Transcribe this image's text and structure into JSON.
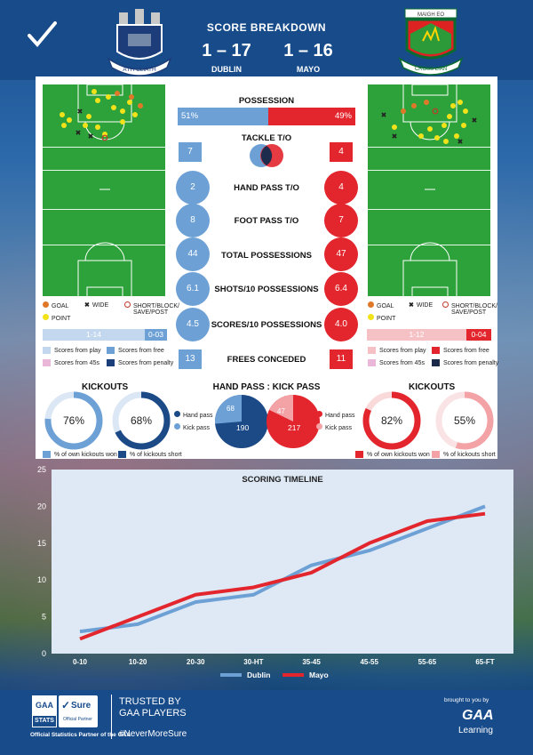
{
  "header": {
    "title": "SCORE BREAKDOWN"
  },
  "teams": {
    "left": {
      "name": "DUBLIN",
      "score": "1 – 17",
      "crest_text": "ÁTH CLIATH",
      "color": "#6da1d6",
      "dark": "#1b4a86"
    },
    "right": {
      "name": "MAYO",
      "score": "1 – 16",
      "crest_text": "CROSS LIAN",
      "crest_top": "MAIGH EO",
      "color": "#e3262d",
      "light": "#f3a2a6"
    }
  },
  "legend_shots": {
    "goal": "GOAL",
    "wide": "WIDE",
    "short": "SHORT/BLOCK/",
    "short2": "SAVE/POST",
    "point": "POINT"
  },
  "possession": {
    "label": "POSSESSION",
    "left": "51%",
    "right": "49%",
    "left_value": 51
  },
  "stats": [
    {
      "label": "TACKLE T/O",
      "left": "7",
      "right": "4"
    },
    {
      "label": "HAND PASS T/O",
      "left": "2",
      "right": "4"
    },
    {
      "label": "FOOT PASS T/O",
      "left": "8",
      "right": "7"
    },
    {
      "label": "TOTAL POSSESSIONS",
      "left": "44",
      "right": "47"
    },
    {
      "label": "SHOTS/10 POSSESSIONS",
      "left": "6.1",
      "right": "6.4"
    },
    {
      "label": "SCORES/10 POSSESSIONS",
      "left": "4.5",
      "right": "4.0"
    },
    {
      "label": "FREES CONCEDED",
      "left": "13",
      "right": "11"
    }
  ],
  "score_bars": {
    "left_play": "1-14",
    "left_free": "0-03",
    "right_play": "1-12",
    "right_free": "0-04"
  },
  "legend_scores": {
    "play": "Scores from play",
    "free": "Scores from free",
    "s45": "Scores from 45s",
    "pen": "Scores from penalty"
  },
  "kickouts": {
    "title": "KICKOUTS",
    "left_won": "76%",
    "left_won_value": 76,
    "left_short": "68%",
    "left_short_value": 68,
    "right_won": "82%",
    "right_won_value": 82,
    "right_short": "55%",
    "right_short_value": 55,
    "legend_won": "% of own kickouts won",
    "legend_short": "% of kickouts short"
  },
  "hand_kick": {
    "title": "HAND PASS : KICK PASS",
    "hand_label": "Hand pass",
    "kick_label": "Kick pass",
    "left_hand": "190",
    "left_kick": "68",
    "left_hand_value": 190,
    "left_kick_value": 68,
    "right_hand": "217",
    "right_kick": "47",
    "right_hand_value": 217,
    "right_kick_value": 47
  },
  "chart_data": {
    "type": "line",
    "title": "SCORING TIMELINE",
    "categories": [
      "0-10",
      "10-20",
      "20-30",
      "30-HT",
      "35-45",
      "45-55",
      "55-65",
      "65-FT"
    ],
    "series": [
      {
        "name": "Dublin",
        "color": "#6da1d6",
        "values": [
          3,
          4,
          7,
          8,
          12,
          14,
          17,
          20
        ]
      },
      {
        "name": "Mayo",
        "color": "#e3262d",
        "values": [
          2,
          5,
          8,
          9,
          11,
          15,
          18,
          19
        ]
      }
    ],
    "ylim": [
      0,
      25
    ],
    "yticks": [
      "0",
      "5",
      "10",
      "15",
      "20",
      "25"
    ],
    "grid": false,
    "legend": "bottom"
  },
  "footer": {
    "stats": "STATS",
    "sure": "Sure",
    "official": "Official Partner",
    "partner_line": "Official Statistics Partner of the GAA",
    "trusted1": "TRUSTED BY",
    "trusted2": "GAA PLAYERS",
    "hashtag": "#NeverMoreSure",
    "brought": "brought to you by",
    "gaa": "GAA",
    "learning": "Learning"
  }
}
